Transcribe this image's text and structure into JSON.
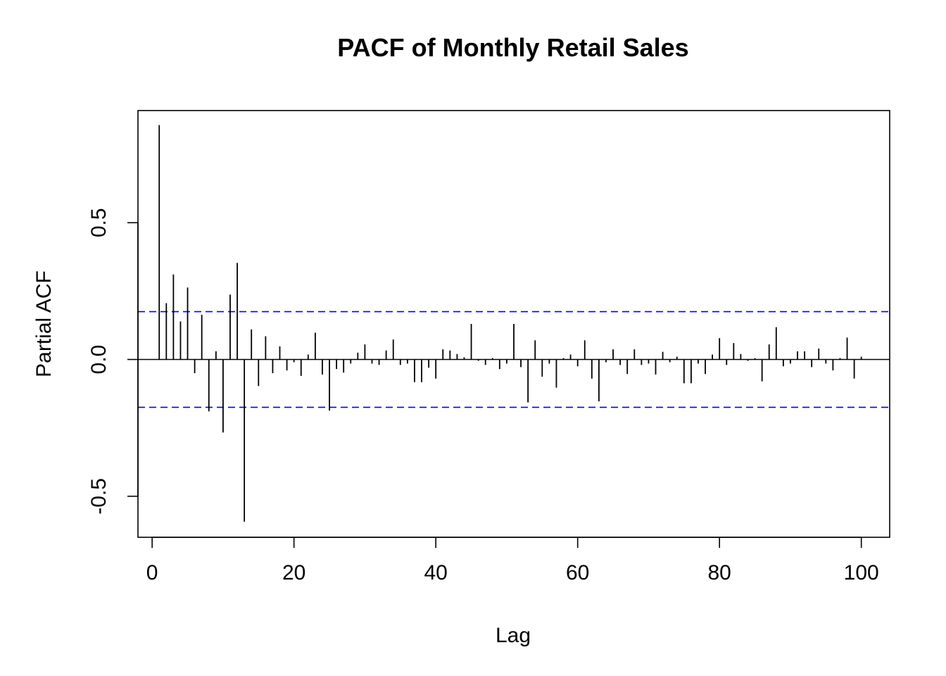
{
  "chart_data": {
    "type": "bar",
    "title": "PACF of Monthly Retail Sales",
    "xlabel": "Lag",
    "ylabel": "Partial ACF",
    "xlim": [
      -2,
      104
    ],
    "ylim": [
      -0.65,
      0.91
    ],
    "xticks": [
      0,
      20,
      40,
      60,
      80,
      100
    ],
    "xtick_labels": [
      "0",
      "20",
      "40",
      "60",
      "80",
      "100"
    ],
    "yticks": [
      -0.5,
      0.0,
      0.5
    ],
    "ytick_labels": [
      "-0.5",
      "0.0",
      "0.5"
    ],
    "confidence_bound": 0.175,
    "colors": {
      "bars": "#000000",
      "bounds": "#0000ff",
      "zero_line": "#000000",
      "frame": "#000000"
    },
    "grid": false,
    "lags": [
      1,
      2,
      3,
      4,
      5,
      6,
      7,
      8,
      9,
      10,
      11,
      12,
      13,
      14,
      15,
      16,
      17,
      18,
      19,
      20,
      21,
      22,
      23,
      24,
      25,
      26,
      27,
      28,
      29,
      30,
      31,
      32,
      33,
      34,
      35,
      36,
      37,
      38,
      39,
      40,
      41,
      42,
      43,
      44,
      45,
      46,
      47,
      48,
      49,
      50,
      51,
      52,
      53,
      54,
      55,
      56,
      57,
      58,
      59,
      60,
      61,
      62,
      63,
      64,
      65,
      66,
      67,
      68,
      69,
      70,
      71,
      72,
      73,
      74,
      75,
      76,
      77,
      78,
      79,
      80,
      81,
      82,
      83,
      84,
      85,
      86,
      87,
      88,
      89,
      90,
      91,
      92,
      93,
      94,
      95,
      96,
      97,
      98,
      99,
      100
    ],
    "values": [
      0.857,
      0.206,
      0.311,
      0.139,
      0.263,
      -0.05,
      0.163,
      -0.19,
      0.03,
      -0.267,
      0.237,
      0.353,
      -0.593,
      0.11,
      -0.097,
      0.085,
      -0.05,
      0.048,
      -0.04,
      -0.01,
      -0.06,
      0.018,
      0.098,
      -0.055,
      -0.187,
      -0.035,
      -0.048,
      -0.015,
      0.025,
      0.055,
      -0.015,
      -0.02,
      0.033,
      0.073,
      -0.02,
      -0.015,
      -0.083,
      -0.083,
      -0.03,
      -0.07,
      0.037,
      0.033,
      0.02,
      0.008,
      0.13,
      -0.005,
      -0.02,
      0.005,
      -0.035,
      -0.015,
      0.13,
      -0.028,
      -0.157,
      0.07,
      -0.063,
      -0.015,
      -0.103,
      0.005,
      0.018,
      -0.025,
      0.07,
      -0.07,
      -0.153,
      -0.01,
      0.037,
      -0.02,
      -0.053,
      0.037,
      -0.02,
      -0.015,
      -0.055,
      0.028,
      -0.01,
      0.01,
      -0.087,
      -0.087,
      -0.015,
      -0.053,
      0.018,
      0.078,
      -0.02,
      0.06,
      0.02,
      -0.005,
      0.005,
      -0.08,
      0.055,
      0.118,
      -0.025,
      -0.015,
      0.03,
      0.03,
      -0.028,
      0.04,
      -0.015,
      -0.04,
      0.005,
      0.08,
      -0.07,
      0.01
    ]
  }
}
